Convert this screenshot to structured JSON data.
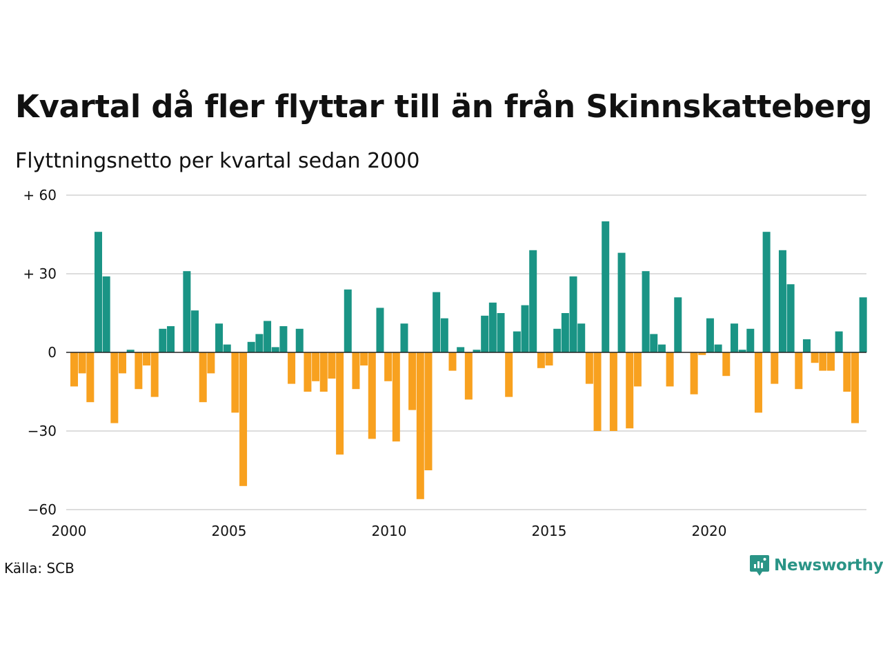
{
  "title": "Kvartal då fler flyttar till än från Skinnskatteberg",
  "subtitle": "Flyttningsnetto per kvartal sedan 2000",
  "source": "Källa: SCB",
  "brand": {
    "name": "Newsworthy",
    "icon": "newsworthy-logo-icon"
  },
  "colors": {
    "positive": "#1a9485",
    "negative": "#f8a11f",
    "grid": "#dddddd",
    "zero_line": "#222222"
  },
  "chart_data": {
    "type": "bar",
    "title": "",
    "xlabel": "",
    "ylabel": "",
    "ylim": [
      -60,
      60
    ],
    "xlim": [
      2000,
      2024.75
    ],
    "grid": true,
    "y_ticks": [
      {
        "value": 60,
        "label": "+ 60"
      },
      {
        "value": 30,
        "label": "+ 30"
      },
      {
        "value": 0,
        "label": "0"
      },
      {
        "value": -30,
        "label": "−30"
      },
      {
        "value": -60,
        "label": "−60"
      }
    ],
    "x_ticks": [
      {
        "value": 2000,
        "label": "2000"
      },
      {
        "value": 2005,
        "label": "2005"
      },
      {
        "value": 2010,
        "label": "2010"
      },
      {
        "value": 2015,
        "label": "2015"
      },
      {
        "value": 2020,
        "label": "2020"
      }
    ],
    "categories": [
      "2000 K1",
      "2000 K2",
      "2000 K3",
      "2000 K4",
      "2001 K1",
      "2001 K2",
      "2001 K3",
      "2001 K4",
      "2002 K1",
      "2002 K2",
      "2002 K3",
      "2002 K4",
      "2003 K1",
      "2003 K2",
      "2003 K3",
      "2003 K4",
      "2004 K1",
      "2004 K2",
      "2004 K3",
      "2004 K4",
      "2005 K1",
      "2005 K2",
      "2005 K3",
      "2005 K4",
      "2006 K1",
      "2006 K2",
      "2006 K3",
      "2006 K4",
      "2007 K1",
      "2007 K2",
      "2007 K3",
      "2007 K4",
      "2008 K1",
      "2008 K2",
      "2008 K3",
      "2008 K4",
      "2009 K1",
      "2009 K2",
      "2009 K3",
      "2009 K4",
      "2010 K1",
      "2010 K2",
      "2010 K3",
      "2010 K4",
      "2011 K1",
      "2011 K2",
      "2011 K3",
      "2011 K4",
      "2012 K1",
      "2012 K2",
      "2012 K3",
      "2012 K4",
      "2013 K1",
      "2013 K2",
      "2013 K3",
      "2013 K4",
      "2014 K1",
      "2014 K2",
      "2014 K3",
      "2014 K4",
      "2015 K1",
      "2015 K2",
      "2015 K3",
      "2015 K4",
      "2016 K1",
      "2016 K2",
      "2016 K3",
      "2016 K4",
      "2017 K1",
      "2017 K2",
      "2017 K3",
      "2017 K4",
      "2018 K1",
      "2018 K2",
      "2018 K3",
      "2018 K4",
      "2019 K1",
      "2019 K2",
      "2019 K3",
      "2019 K4",
      "2020 K1",
      "2020 K2",
      "2020 K3",
      "2020 K4",
      "2021 K1",
      "2021 K2",
      "2021 K3",
      "2021 K4",
      "2022 K1",
      "2022 K2",
      "2022 K3",
      "2022 K4",
      "2023 K1",
      "2023 K2",
      "2023 K3",
      "2023 K4",
      "2024 K1",
      "2024 K2",
      "2024 K3",
      "2024 K4"
    ],
    "values": [
      -13,
      -8,
      -19,
      46,
      29,
      -27,
      -8,
      1,
      -14,
      -5,
      -17,
      9,
      10,
      0,
      31,
      16,
      -19,
      -8,
      11,
      3,
      -23,
      -51,
      4,
      7,
      12,
      2,
      10,
      -12,
      9,
      -15,
      -11,
      -15,
      -10,
      -39,
      24,
      -14,
      -5,
      -33,
      17,
      -11,
      -34,
      11,
      -22,
      -56,
      -45,
      23,
      13,
      -7,
      2,
      -18,
      1,
      14,
      19,
      15,
      -17,
      8,
      18,
      39,
      -6,
      -5,
      9,
      15,
      29,
      11,
      -12,
      -30,
      50,
      -30,
      38,
      -29,
      -13,
      31,
      7,
      3,
      -13,
      21,
      0,
      -16,
      -1,
      13,
      3,
      -9,
      11,
      1,
      9,
      -23,
      46,
      -12,
      39,
      26,
      -14,
      5,
      -4,
      -7,
      -7,
      8,
      -15,
      -27,
      21,
      0
    ]
  }
}
